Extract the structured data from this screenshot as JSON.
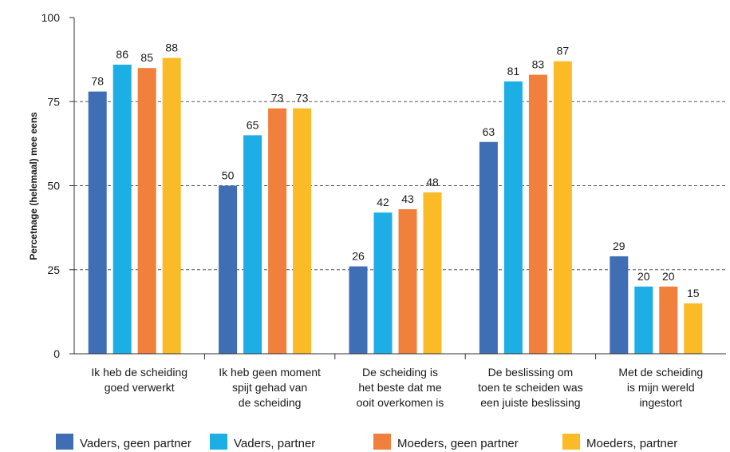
{
  "chart_data": {
    "type": "bar",
    "ylabel": "Percetnage (helemaal) mee eens",
    "ylim": [
      0,
      100
    ],
    "yticks": [
      0,
      25,
      50,
      75,
      100
    ],
    "grid": "horizontal dashed at 25, 50, 75",
    "legend_position": "bottom",
    "categories": [
      [
        "Ik heb de scheiding",
        "goed verwerkt"
      ],
      [
        "Ik heb geen moment",
        "spijt gehad van",
        "de scheiding"
      ],
      [
        "De scheiding is",
        "het beste dat me",
        "ooit overkomen is"
      ],
      [
        "De beslissing om",
        "toen te scheiden was",
        "een juiste beslissing"
      ],
      [
        "Met de scheiding",
        "is mijn wereld",
        "ingestort"
      ]
    ],
    "series": [
      {
        "name": "Vaders, geen partner",
        "color": "#3f6eb5",
        "values": [
          78,
          50,
          26,
          63,
          29
        ]
      },
      {
        "name": "Vaders, partner",
        "color": "#1eaee6",
        "values": [
          86,
          65,
          42,
          81,
          20
        ]
      },
      {
        "name": "Moeders, geen partner",
        "color": "#f0803c",
        "values": [
          85,
          73,
          43,
          83,
          20
        ]
      },
      {
        "name": "Moeders, partner",
        "color": "#fbbb27",
        "values": [
          88,
          73,
          48,
          87,
          15
        ]
      }
    ]
  }
}
